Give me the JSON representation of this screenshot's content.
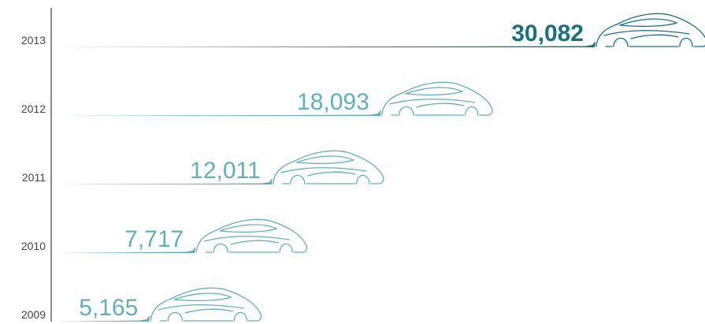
{
  "chart_data": {
    "type": "bar",
    "orientation": "horizontal",
    "categories": [
      "2013",
      "2012",
      "2011",
      "2010",
      "2009"
    ],
    "values": [
      30082,
      18093,
      12011,
      7717,
      5165
    ],
    "value_labels": [
      "30,082",
      "18,093",
      "12,011",
      "7,717",
      "5,165"
    ],
    "colors": [
      "#17727e",
      "#5fb0ba",
      "#5fb0ba",
      "#5fb0ba",
      "#5fb0ba"
    ],
    "highlight_color": "#17727e"
  }
}
